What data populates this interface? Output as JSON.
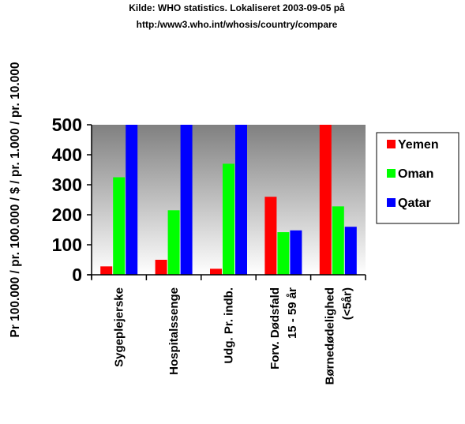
{
  "chart_data": {
    "type": "bar",
    "title_lines": [
      "Kilde: WHO statistics. Lokaliseret 2003-09-05 på",
      "http:/www3.who.int/whosis/country/compare"
    ],
    "ylabel": "Pr 100.000 / pr. 100.000 / $ / pr. 1.000 / pr. 10.000",
    "ylim": [
      0,
      500
    ],
    "yticks": [
      "0",
      "100",
      "200",
      "300",
      "400",
      "500"
    ],
    "categories": [
      [
        "Sygeplejerske"
      ],
      [
        "Hospitalssenge"
      ],
      [
        "Udg. Pr. indb."
      ],
      [
        "Forv. Dødsfald",
        "15 - 59 år"
      ],
      [
        "Børnedødelighed",
        "(<5år)"
      ]
    ],
    "series": [
      {
        "name": "Yemen",
        "color": "#ff0000",
        "values": [
          28,
          50,
          20,
          260,
          500
        ]
      },
      {
        "name": "Oman",
        "color": "#00ff00",
        "values": [
          325,
          215,
          370,
          142,
          228
        ]
      },
      {
        "name": "Qatar",
        "color": "#0000ff",
        "values": [
          500,
          500,
          500,
          148,
          160
        ]
      }
    ],
    "legend_position": "right",
    "plot_background": "gradient-gray"
  }
}
